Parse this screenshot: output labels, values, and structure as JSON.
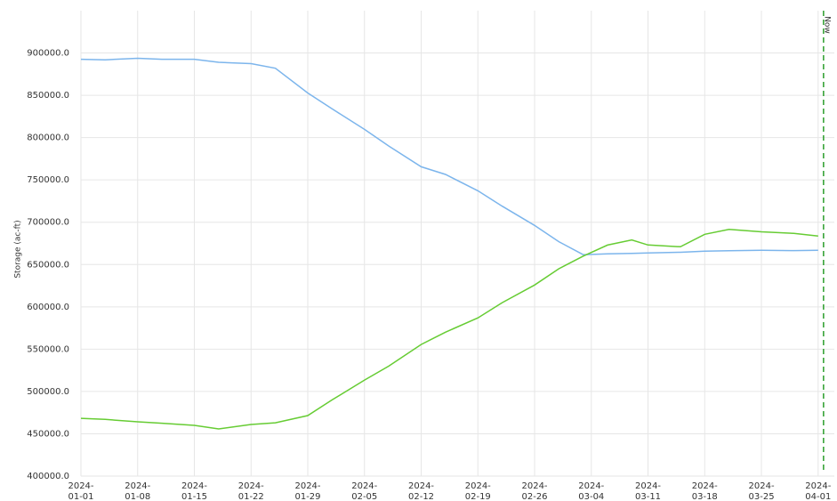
{
  "chart_data": {
    "type": "line",
    "y_axis_label": "Storage (ac-ft)",
    "x": [
      "2024-01-01",
      "2024-01-04",
      "2024-01-08",
      "2024-01-11",
      "2024-01-15",
      "2024-01-18",
      "2024-01-22",
      "2024-01-25",
      "2024-01-29",
      "2024-02-01",
      "2024-02-05",
      "2024-02-08",
      "2024-02-12",
      "2024-02-15",
      "2024-02-19",
      "2024-02-22",
      "2024-02-26",
      "2024-02-29",
      "2024-03-03",
      "2024-03-06",
      "2024-03-09",
      "2024-03-11",
      "2024-03-15",
      "2024-03-18",
      "2024-03-21",
      "2024-03-25",
      "2024-03-29",
      "2024-04-01"
    ],
    "series": [
      {
        "color": "#7cb5ec",
        "values": [
          892600,
          892000,
          893700,
          892600,
          892600,
          889000,
          887400,
          882000,
          852700,
          834000,
          809700,
          790000,
          765500,
          756500,
          737200,
          719000,
          696200,
          677000,
          661600,
          662600,
          663200,
          663700,
          664500,
          665800,
          666300,
          666800,
          666500,
          666800
        ]
      },
      {
        "color": "#66cc33",
        "values": [
          468300,
          467000,
          464100,
          462500,
          459900,
          455700,
          461000,
          463000,
          471500,
          490000,
          513500,
          530000,
          555500,
          570000,
          587000,
          605000,
          625800,
          645000,
          660000,
          673000,
          679000,
          673100,
          671000,
          685700,
          691500,
          688700,
          686800,
          683600
        ]
      }
    ],
    "xlim": [
      "2024-01-01",
      "2024-04-03"
    ],
    "xticks": [
      "2024-01-01",
      "2024-01-08",
      "2024-01-15",
      "2024-01-22",
      "2024-01-29",
      "2024-02-05",
      "2024-02-12",
      "2024-02-19",
      "2024-02-26",
      "2024-03-04",
      "2024-03-11",
      "2024-03-18",
      "2024-03-25",
      "2024-04-01"
    ],
    "ylim": [
      400000,
      950000
    ],
    "yticks": [
      {
        "value": 400000,
        "label": "400000.0"
      },
      {
        "value": 450000,
        "label": "450000.0"
      },
      {
        "value": 500000,
        "label": "500000.0"
      },
      {
        "value": 550000,
        "label": "550000.0"
      },
      {
        "value": 600000,
        "label": "600000.0"
      },
      {
        "value": 650000,
        "label": "650000.0"
      },
      {
        "value": 700000,
        "label": "700000.0"
      },
      {
        "value": 750000,
        "label": "750000.0"
      },
      {
        "value": 800000,
        "label": "800000.0"
      },
      {
        "value": 850000,
        "label": "850000.0"
      },
      {
        "value": 900000,
        "label": "900000.0"
      }
    ],
    "grid": true,
    "now_marker": {
      "text": "Now",
      "x": "2024-04-01T16:00",
      "color": "#2a9d2a"
    }
  }
}
